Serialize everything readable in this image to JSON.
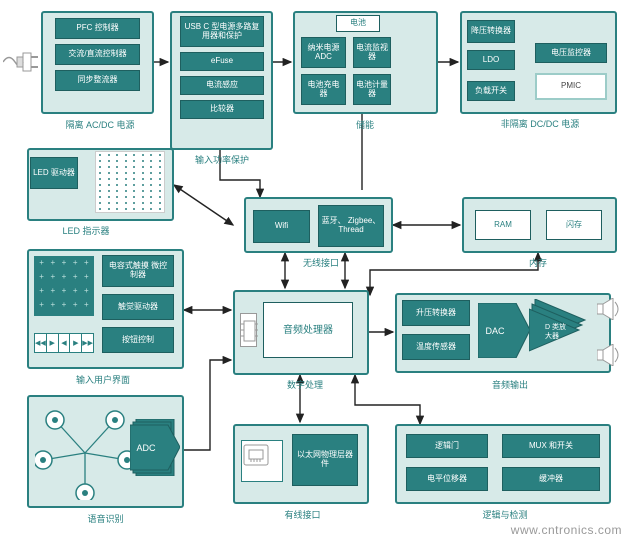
{
  "colors": {
    "accent": "#2a8080",
    "panel": "#d7eae8",
    "white": "#ffffff",
    "border": "#9cccc8",
    "watermark": "#999999"
  },
  "labels": {
    "acdc": "隔离 AC/DC 电源",
    "input_prot": "输入功率保护",
    "energy": "储能",
    "dcdc": "非隔离 DC/DC 电源",
    "led": "LED 指示器",
    "wireless": "无线接口",
    "memory": "内存",
    "ui": "输入用户界面",
    "audio_proc": "数字处理",
    "audio_out": "音频输出",
    "gesture": "语音识别",
    "wired": "有线接口",
    "logic": "逻辑与检测"
  },
  "blocks": {
    "pfc": "PFC 控制器",
    "acdc_ctrl": "交流/直流控制器",
    "sync_rect": "同步整流器",
    "usbc": "USB C 型电源多路复用器和保护",
    "efuse": "eFuse",
    "curr_sense": "电流感应",
    "comp": "比较器",
    "adc_nm": "纳米电源 ADC",
    "batt_chg": "电池充电器",
    "battery": "电池",
    "curr_mon": "电流监视器",
    "fuel_gauge": "电池计量器",
    "buck": "降压转换器",
    "ldo": "LDO",
    "load_sw": "负载开关",
    "volt_mon": "电压监控器",
    "pmic": "PMIC",
    "led_drv": "LED 驱动器",
    "wifi": "Wifi",
    "bt": "蓝牙、 Zigbee、 Thread",
    "ram": "RAM",
    "flash": "闪存",
    "cap_touch": "电容式触摸 微控制器",
    "touch_drv": "触觉驱动器",
    "btn_ctrl": "按钮控制",
    "audio_processor": "音频处理器",
    "boost": "升压转换器",
    "temp": "温度传感器",
    "dac": "DAC",
    "classd": "D 类放大器",
    "adc": "ADC",
    "eth_phy": "以太网物理层器件",
    "logic_gate": "逻辑门",
    "level_shift": "电平位移器",
    "mux": "MUX 和开关",
    "buffer": "缓冲器"
  },
  "watermark": "www.cntronics.com"
}
